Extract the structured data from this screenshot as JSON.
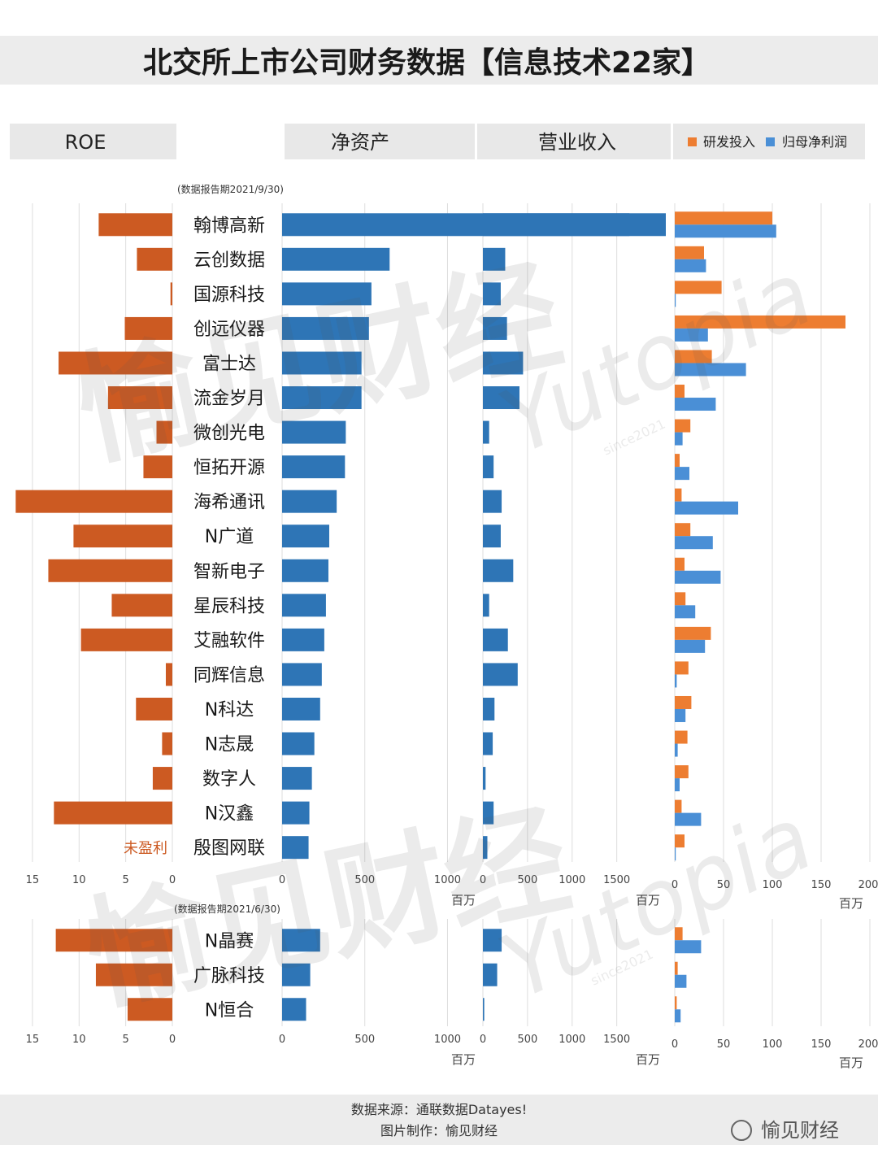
{
  "title": "北交所上市公司财务数据【信息技术22家】",
  "headers": {
    "roe": "ROE",
    "net_assets": "净资产",
    "revenue": "营业收入"
  },
  "legend": [
    {
      "name": "研发投入",
      "color": "#ed7d31"
    },
    {
      "name": "归母净利润",
      "color": "#4a8fd6"
    }
  ],
  "colors": {
    "roe": "#cc5a22",
    "assets": "#2e75b6",
    "revenue": "#2e75b6",
    "rd": "#ed7d31",
    "profit": "#4a8fd6",
    "unprofitable": "#cc5a22"
  },
  "watermark": {
    "text1": "愉见财经",
    "text2": "Yutopia",
    "text3": "since2021"
  },
  "unit": "百万",
  "unprofitable_label": "未盈利",
  "footer": {
    "source": "数据来源：通联数据Datayes!",
    "made_by": "图片制作：愉见财经"
  },
  "logo": {
    "text": "愉见财经"
  },
  "chart_data": [
    {
      "type": "bar",
      "period_label": "(数据报告期2021/9/30)",
      "categories": [
        "翰博高新",
        "云创数据",
        "国源科技",
        "创远仪器",
        "富士达",
        "流金岁月",
        "微创光电",
        "恒拓开源",
        "海希通讯",
        "N广道",
        "智新电子",
        "星辰科技",
        "艾融软件",
        "同辉信息",
        "N科达",
        "N志晟",
        "数字人",
        "N汉鑫",
        "殷图网联"
      ],
      "roe": {
        "ticks": [
          "15",
          "10",
          "5",
          "0"
        ],
        "range": [
          0,
          17
        ],
        "values": [
          7.9,
          3.8,
          0.2,
          5.1,
          12.2,
          6.9,
          1.7,
          3.1,
          16.8,
          10.6,
          13.3,
          6.5,
          9.8,
          0.7,
          3.9,
          1.1,
          2.1,
          12.7,
          null
        ]
      },
      "net_assets": {
        "ticks": [
          "0",
          "500",
          "1000"
        ],
        "range": [
          0,
          1150
        ],
        "values": [
          2100,
          650,
          540,
          525,
          480,
          480,
          385,
          380,
          330,
          285,
          280,
          265,
          255,
          240,
          230,
          195,
          180,
          165,
          160
        ]
      },
      "revenue": {
        "ticks": [
          "0",
          "500",
          "1000",
          "1500"
        ],
        "range": [
          0,
          2050
        ],
        "values": [
          2050,
          250,
          200,
          270,
          450,
          410,
          70,
          120,
          210,
          200,
          340,
          70,
          280,
          390,
          130,
          110,
          30,
          120,
          50
        ]
      },
      "rd_profit": {
        "ticks": [
          "0",
          "50",
          "100",
          "150",
          "200"
        ],
        "range": [
          0,
          200
        ],
        "rd": [
          100,
          30,
          48,
          175,
          38,
          10,
          16,
          5,
          7,
          16,
          10,
          11,
          37,
          14,
          17,
          13,
          14,
          7,
          10
        ],
        "profit": [
          104,
          32,
          1,
          34,
          73,
          42,
          8,
          15,
          65,
          39,
          47,
          21,
          31,
          2,
          11,
          3,
          5,
          27,
          1
        ]
      }
    },
    {
      "type": "bar",
      "period_label": "(数据报告期2021/6/30)",
      "categories": [
        "N晶赛",
        "广脉科技",
        "N恒合"
      ],
      "roe": {
        "ticks": [
          "15",
          "10",
          "5",
          "0"
        ],
        "range": [
          0,
          17
        ],
        "values": [
          12.5,
          8.2,
          4.8
        ]
      },
      "net_assets": {
        "ticks": [
          "0",
          "500",
          "1000"
        ],
        "range": [
          0,
          1150
        ],
        "values": [
          230,
          170,
          145
        ]
      },
      "revenue": {
        "ticks": [
          "0",
          "500",
          "1000",
          "1500"
        ],
        "range": [
          0,
          2050
        ],
        "values": [
          210,
          160,
          15
        ]
      },
      "rd_profit": {
        "ticks": [
          "0",
          "50",
          "100",
          "150",
          "200"
        ],
        "range": [
          0,
          200
        ],
        "rd": [
          8,
          3,
          2
        ],
        "profit": [
          27,
          12,
          6
        ]
      }
    }
  ]
}
